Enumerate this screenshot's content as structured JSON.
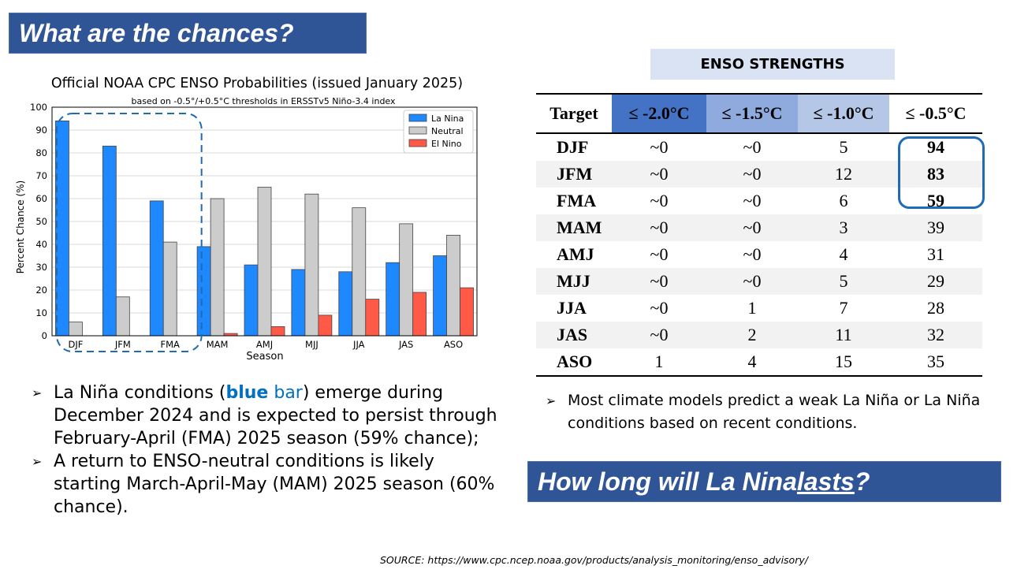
{
  "banners": {
    "top": "What are the chances?",
    "bottom_prefix": "How long will La Nina ",
    "bottom_underlined": "lasts",
    "bottom_suffix": "?"
  },
  "chart_data": {
    "type": "bar",
    "title": "Official NOAA CPC ENSO Probabilities (issued January 2025)",
    "subtitle": "based on -0.5°/+0.5°C thresholds in ERSSTv5 Niño-3.4 index",
    "xlabel": "Season",
    "ylabel": "Percent Chance (%)",
    "ylim": [
      0,
      100
    ],
    "yticks": [
      0,
      10,
      20,
      30,
      40,
      50,
      60,
      70,
      80,
      90,
      100
    ],
    "grid": true,
    "legend_position": "top-right",
    "categories": [
      "DJF",
      "JFM",
      "FMA",
      "MAM",
      "AMJ",
      "MJJ",
      "JJA",
      "JAS",
      "ASO"
    ],
    "series": [
      {
        "name": "La Nina",
        "color": "#1e88ff",
        "values": [
          94,
          83,
          59,
          39,
          31,
          29,
          28,
          32,
          35
        ]
      },
      {
        "name": "Neutral",
        "color": "#cccccc",
        "values": [
          6,
          17,
          41,
          60,
          65,
          62,
          56,
          49,
          44
        ]
      },
      {
        "name": "El Nino",
        "color": "#ff5a47",
        "values": [
          0,
          0,
          0,
          1,
          4,
          9,
          16,
          19,
          21
        ]
      }
    ],
    "highlight_categories": [
      "DJF",
      "JFM",
      "FMA"
    ]
  },
  "left_bullets": {
    "b1_pre": "La Niña conditions (",
    "b1_blue_bold": "blue",
    "b1_blue": " bar",
    "b1_post": ") emerge during December 2024 and is expected to persist through February-April (FMA) 2025 season (59% chance);",
    "b2": "A return to ENSO-neutral conditions is likely starting March-April-May (MAM) 2025 season (60% chance)."
  },
  "strengths_title": "ENSO STRENGTHS",
  "table": {
    "headers": [
      "Target",
      "≤ -2.0°C",
      "≤ -1.5°C",
      "≤ -1.0°C",
      "≤ -0.5°C"
    ],
    "rows": [
      [
        "DJF",
        "~0",
        "~0",
        "5",
        "94"
      ],
      [
        "JFM",
        "~0",
        "~0",
        "12",
        "83"
      ],
      [
        "FMA",
        "~0",
        "~0",
        "6",
        "59"
      ],
      [
        "MAM",
        "~0",
        "~0",
        "3",
        "39"
      ],
      [
        "AMJ",
        "~0",
        "~0",
        "4",
        "31"
      ],
      [
        "MJJ",
        "~0",
        "~0",
        "5",
        "29"
      ],
      [
        "JJA",
        "~0",
        "1",
        "7",
        "28"
      ],
      [
        "JAS",
        "~0",
        "2",
        "11",
        "32"
      ],
      [
        "ASO",
        "1",
        "4",
        "15",
        "35"
      ]
    ]
  },
  "right_bullet": "Most climate models predict a weak La Niña or La Niña  conditions based on recent conditions.",
  "source": "SOURCE: https://www.cpc.ncep.noaa.gov/products/analysis_monitoring/enso_advisory/",
  "icons": {
    "bullet": "arrowhead-bullet-icon"
  }
}
